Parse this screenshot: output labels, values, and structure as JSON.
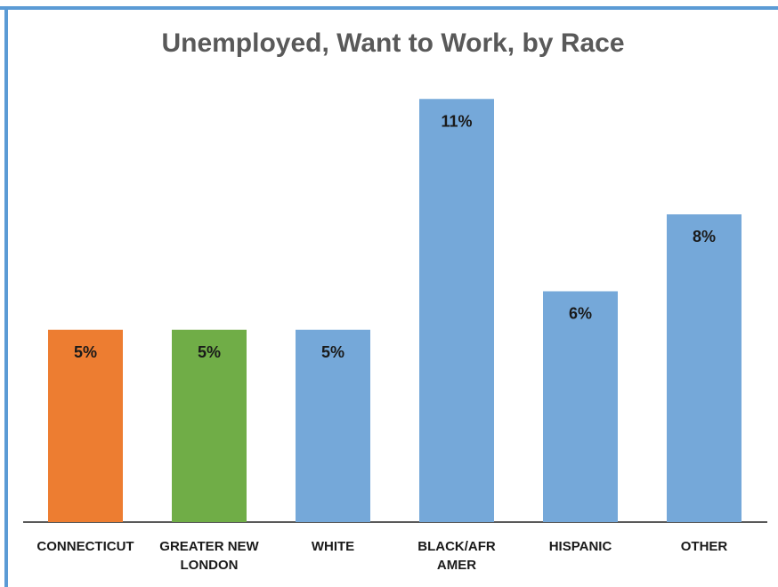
{
  "chart_data": {
    "type": "bar",
    "title": "Unemployed, Want to Work, by Race",
    "categories": [
      "CONNECTICUT",
      "GREATER NEW LONDON",
      "WHITE",
      "BLACK/AFR AMER",
      "HISPANIC",
      "OTHER"
    ],
    "category_lines": [
      [
        "CONNECTICUT"
      ],
      [
        "GREATER NEW",
        "LONDON"
      ],
      [
        "WHITE"
      ],
      [
        "BLACK/AFR",
        "AMER"
      ],
      [
        "HISPANIC"
      ],
      [
        "OTHER"
      ]
    ],
    "values": [
      5,
      5,
      5,
      11,
      6,
      8
    ],
    "value_labels": [
      "5%",
      "5%",
      "5%",
      "11%",
      "6%",
      "8%"
    ],
    "colors": [
      "#ed7d31",
      "#70ad47",
      "#75a8d9",
      "#75a8d9",
      "#75a8d9",
      "#75a8d9"
    ],
    "ylim": [
      0,
      12
    ],
    "grid": false,
    "legend": "none"
  }
}
